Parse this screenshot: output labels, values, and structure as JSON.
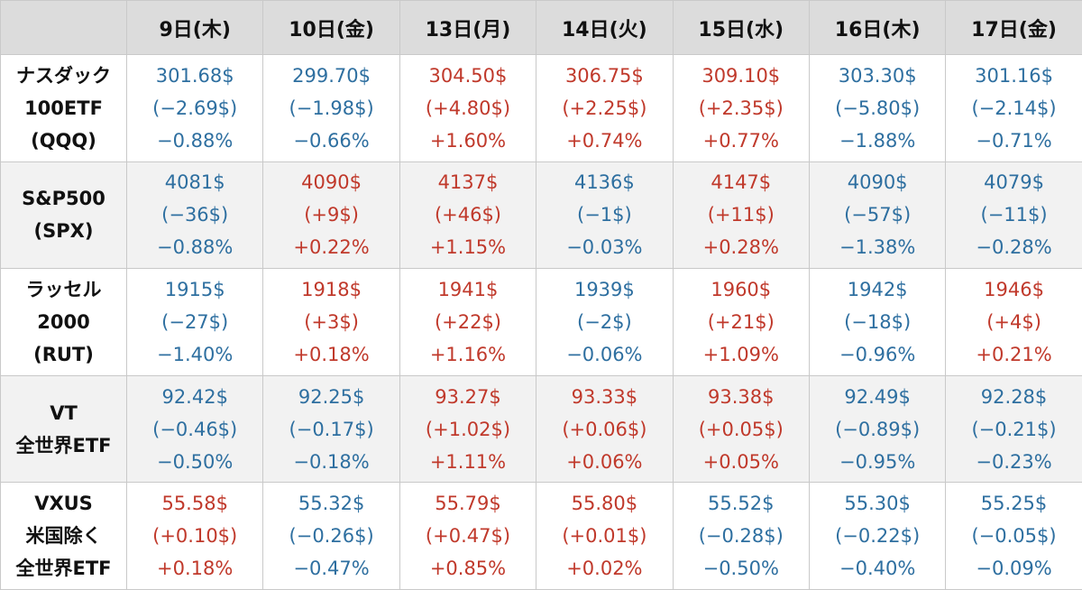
{
  "colors": {
    "up": "#c0392b",
    "down": "#2e6fa0",
    "header_bg": "#dcdcdc",
    "alt_row_bg": "#f2f2f2"
  },
  "chart_data": {
    "type": "table",
    "columns": [
      "9日(木)",
      "10日(金)",
      "13日(月)",
      "14日(火)",
      "15日(水)",
      "16日(木)",
      "17日(金)"
    ],
    "rows": [
      {
        "label": [
          "ナスダック",
          "100ETF",
          "(QQQ)"
        ],
        "cells": [
          {
            "price": "301.68$",
            "change": "(−2.69$)",
            "pct": "−0.88%",
            "dir": "down"
          },
          {
            "price": "299.70$",
            "change": "(−1.98$)",
            "pct": "−0.66%",
            "dir": "down"
          },
          {
            "price": "304.50$",
            "change": "(+4.80$)",
            "pct": "+1.60%",
            "dir": "up"
          },
          {
            "price": "306.75$",
            "change": "(+2.25$)",
            "pct": "+0.74%",
            "dir": "up"
          },
          {
            "price": "309.10$",
            "change": "(+2.35$)",
            "pct": "+0.77%",
            "dir": "up"
          },
          {
            "price": "303.30$",
            "change": "(−5.80$)",
            "pct": "−1.88%",
            "dir": "down"
          },
          {
            "price": "301.16$",
            "change": "(−2.14$)",
            "pct": "−0.71%",
            "dir": "down"
          }
        ]
      },
      {
        "label": [
          "S&P500",
          "(SPX)"
        ],
        "cells": [
          {
            "price": "4081$",
            "change": "(−36$)",
            "pct": "−0.88%",
            "dir": "down"
          },
          {
            "price": "4090$",
            "change": "(+9$)",
            "pct": "+0.22%",
            "dir": "up"
          },
          {
            "price": "4137$",
            "change": "(+46$)",
            "pct": "+1.15%",
            "dir": "up"
          },
          {
            "price": "4136$",
            "change": "(−1$)",
            "pct": "−0.03%",
            "dir": "down"
          },
          {
            "price": "4147$",
            "change": "(+11$)",
            "pct": "+0.28%",
            "dir": "up"
          },
          {
            "price": "4090$",
            "change": "(−57$)",
            "pct": "−1.38%",
            "dir": "down"
          },
          {
            "price": "4079$",
            "change": "(−11$)",
            "pct": "−0.28%",
            "dir": "down"
          }
        ]
      },
      {
        "label": [
          "ラッセル",
          "2000",
          "(RUT)"
        ],
        "cells": [
          {
            "price": "1915$",
            "change": "(−27$)",
            "pct": "−1.40%",
            "dir": "down"
          },
          {
            "price": "1918$",
            "change": "(+3$)",
            "pct": "+0.18%",
            "dir": "up"
          },
          {
            "price": "1941$",
            "change": "(+22$)",
            "pct": "+1.16%",
            "dir": "up"
          },
          {
            "price": "1939$",
            "change": "(−2$)",
            "pct": "−0.06%",
            "dir": "down"
          },
          {
            "price": "1960$",
            "change": "(+21$)",
            "pct": "+1.09%",
            "dir": "up"
          },
          {
            "price": "1942$",
            "change": "(−18$)",
            "pct": "−0.96%",
            "dir": "down"
          },
          {
            "price": "1946$",
            "change": "(+4$)",
            "pct": "+0.21%",
            "dir": "up"
          }
        ]
      },
      {
        "label": [
          "VT",
          "全世界ETF"
        ],
        "cells": [
          {
            "price": "92.42$",
            "change": "(−0.46$)",
            "pct": "−0.50%",
            "dir": "down"
          },
          {
            "price": "92.25$",
            "change": "(−0.17$)",
            "pct": "−0.18%",
            "dir": "down"
          },
          {
            "price": "93.27$",
            "change": "(+1.02$)",
            "pct": "+1.11%",
            "dir": "up"
          },
          {
            "price": "93.33$",
            "change": "(+0.06$)",
            "pct": "+0.06%",
            "dir": "up"
          },
          {
            "price": "93.38$",
            "change": "(+0.05$)",
            "pct": "+0.05%",
            "dir": "up"
          },
          {
            "price": "92.49$",
            "change": "(−0.89$)",
            "pct": "−0.95%",
            "dir": "down"
          },
          {
            "price": "92.28$",
            "change": "(−0.21$)",
            "pct": "−0.23%",
            "dir": "down"
          }
        ]
      },
      {
        "label": [
          "VXUS",
          "米国除く",
          "全世界ETF"
        ],
        "cells": [
          {
            "price": "55.58$",
            "change": "(+0.10$)",
            "pct": "+0.18%",
            "dir": "up"
          },
          {
            "price": "55.32$",
            "change": "(−0.26$)",
            "pct": "−0.47%",
            "dir": "down"
          },
          {
            "price": "55.79$",
            "change": "(+0.47$)",
            "pct": "+0.85%",
            "dir": "up"
          },
          {
            "price": "55.80$",
            "change": "(+0.01$)",
            "pct": "+0.02%",
            "dir": "up"
          },
          {
            "price": "55.52$",
            "change": "(−0.28$)",
            "pct": "−0.50%",
            "dir": "down"
          },
          {
            "price": "55.30$",
            "change": "(−0.22$)",
            "pct": "−0.40%",
            "dir": "down"
          },
          {
            "price": "55.25$",
            "change": "(−0.05$)",
            "pct": "−0.09%",
            "dir": "down"
          }
        ]
      }
    ]
  }
}
